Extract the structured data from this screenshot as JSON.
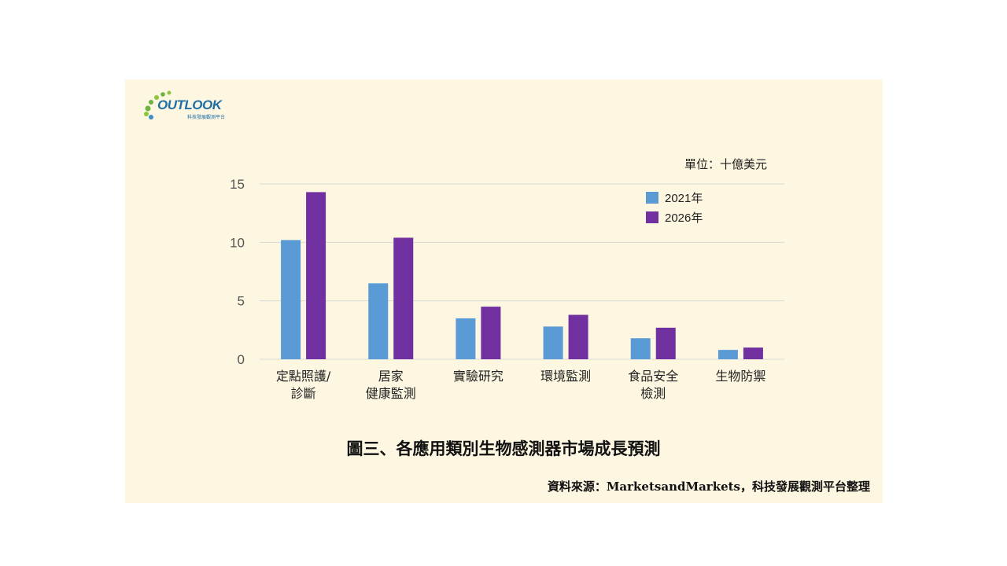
{
  "logo": {
    "name": "OUTLOOK",
    "subtitle": "科技發展觀測平台"
  },
  "unit_label": "單位：十億美元",
  "figure_title": "圖三、各應用類別生物感測器市場成長預測",
  "source": "資料來源：MarketsandMarkets，科技發展觀測平台整理",
  "colors": {
    "panel": "#fdf6e1",
    "series_2021": "#5b9bd5",
    "series_2026": "#7030a0",
    "grid": "#d9d9d9"
  },
  "chart_data": {
    "type": "bar",
    "categories": [
      [
        "定點照護/",
        "診斷"
      ],
      [
        "居家",
        "健康監測"
      ],
      [
        "實驗研究"
      ],
      [
        "環境監測"
      ],
      [
        "食品安全",
        "檢測"
      ],
      [
        "生物防禦"
      ]
    ],
    "series": [
      {
        "name": "2021年",
        "values": [
          10.2,
          6.5,
          3.5,
          2.8,
          1.8,
          0.8
        ]
      },
      {
        "name": "2026年",
        "values": [
          14.3,
          10.4,
          4.5,
          3.8,
          2.7,
          1.0
        ]
      }
    ],
    "yticks": [
      0,
      5,
      10,
      15
    ],
    "ylim": [
      0,
      15
    ],
    "grid": true,
    "legend_position": "top-right"
  }
}
